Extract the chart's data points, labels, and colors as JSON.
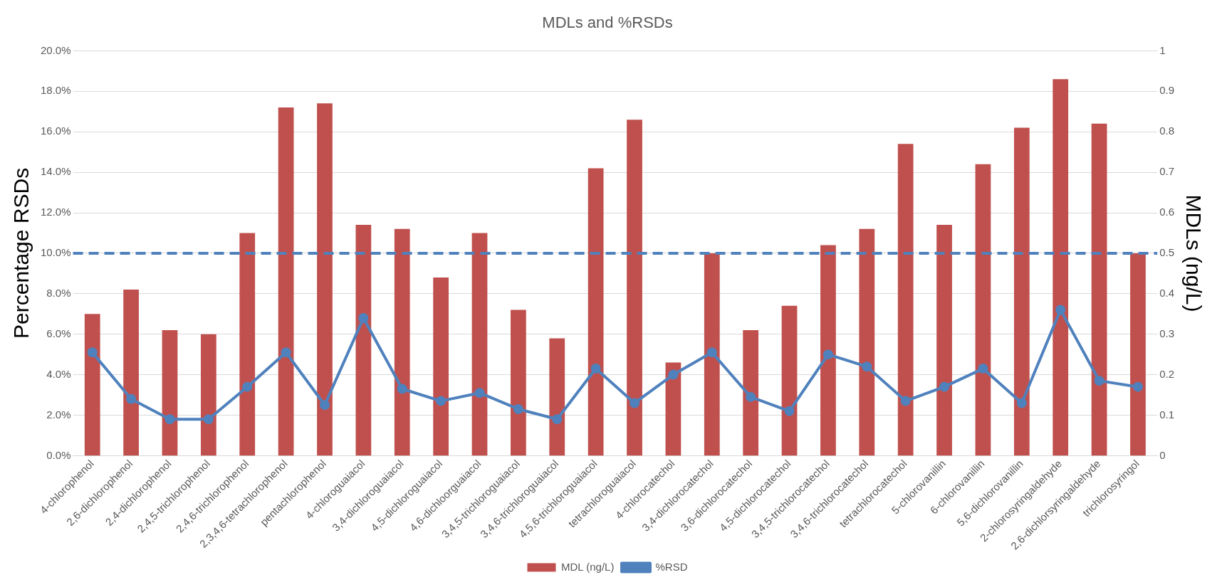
{
  "chart_data": {
    "type": "bar",
    "title": "MDLs and %RSDs",
    "ylabel": "Percentage RSDs",
    "y2label": "MDLs (ng/L)",
    "categories": [
      "4-chlorophenol",
      "2,6-dichlorophenol",
      "2,4-dichlorophenol",
      "2,4,5-trichlorophenol",
      "2,4,6-trichlorophenol",
      "2,3,4,6-tetrachlorophenol",
      "pentachlorophenol",
      "4-chloroguaiacol",
      "3,4-dichloroguaiacol",
      "4,5-dichloroguaiacol",
      "4,6-dichloorguaiacol",
      "3,4,5-trichloroguaiacol",
      "3,4,6-trichloroguaiacol",
      "4,5,6-trichloroguaiacol",
      "tetrachloroguaiacol",
      "4-chlorocatechol",
      "3,4-dichlorocatechol",
      "3,6-dichlorocatechol",
      "4,5-dichlorocatechol",
      "3,4,5-trichlorocatechol",
      "3,4,6-trichlorocatechol",
      "tetrachlorocatechol",
      "5-chlorovanillin",
      "6-chlorovanillin",
      "5,6-dichlorovanillin",
      "2-chlorosyringaldehyde",
      "2,6-dichlorsyringaldehyde",
      "trichlorosyringol"
    ],
    "series": [
      {
        "name": "MDL (ng/L)",
        "axis": "y2",
        "color": "#c0504d",
        "values": [
          0.35,
          0.41,
          0.31,
          0.3,
          0.55,
          0.86,
          0.87,
          0.57,
          0.56,
          0.44,
          0.55,
          0.36,
          0.29,
          0.71,
          0.83,
          0.23,
          0.5,
          0.31,
          0.37,
          0.52,
          0.56,
          0.77,
          0.57,
          0.72,
          0.81,
          0.93,
          0.82,
          0.5
        ]
      },
      {
        "name": "%RSD",
        "type": "line",
        "color": "#4f81bd",
        "marker": "circle",
        "values": [
          5.1,
          2.8,
          1.8,
          1.8,
          3.4,
          5.1,
          2.5,
          6.8,
          3.3,
          2.7,
          3.1,
          2.3,
          1.8,
          4.3,
          2.6,
          4.0,
          5.1,
          2.9,
          2.2,
          5.0,
          4.4,
          2.7,
          3.4,
          4.3,
          2.6,
          7.2,
          3.7,
          3.4
        ]
      }
    ],
    "ylim": [
      0,
      20
    ],
    "yticks": [
      {
        "value": 0,
        "label": "0.0%"
      },
      {
        "value": 2,
        "label": "2.0%"
      },
      {
        "value": 4,
        "label": "4.0%"
      },
      {
        "value": 6,
        "label": "6.0%"
      },
      {
        "value": 8,
        "label": "8.0%"
      },
      {
        "value": 10,
        "label": "10.0%"
      },
      {
        "value": 12,
        "label": "12.0%"
      },
      {
        "value": 14,
        "label": "14.0%"
      },
      {
        "value": 16,
        "label": "16.0%"
      },
      {
        "value": 18,
        "label": "18.0%"
      },
      {
        "value": 20,
        "label": "20.0%"
      }
    ],
    "y2lim": [
      0,
      1
    ],
    "y2ticks": [
      0,
      0.1,
      0.2,
      0.3,
      0.4,
      0.5,
      0.6,
      0.7,
      0.8,
      0.9,
      1
    ],
    "ref_lines": [
      {
        "axis": "y",
        "value": 10,
        "color": "#4f81bd",
        "line_style": "dashed"
      }
    ],
    "grid": "y",
    "legend": "bottom"
  }
}
